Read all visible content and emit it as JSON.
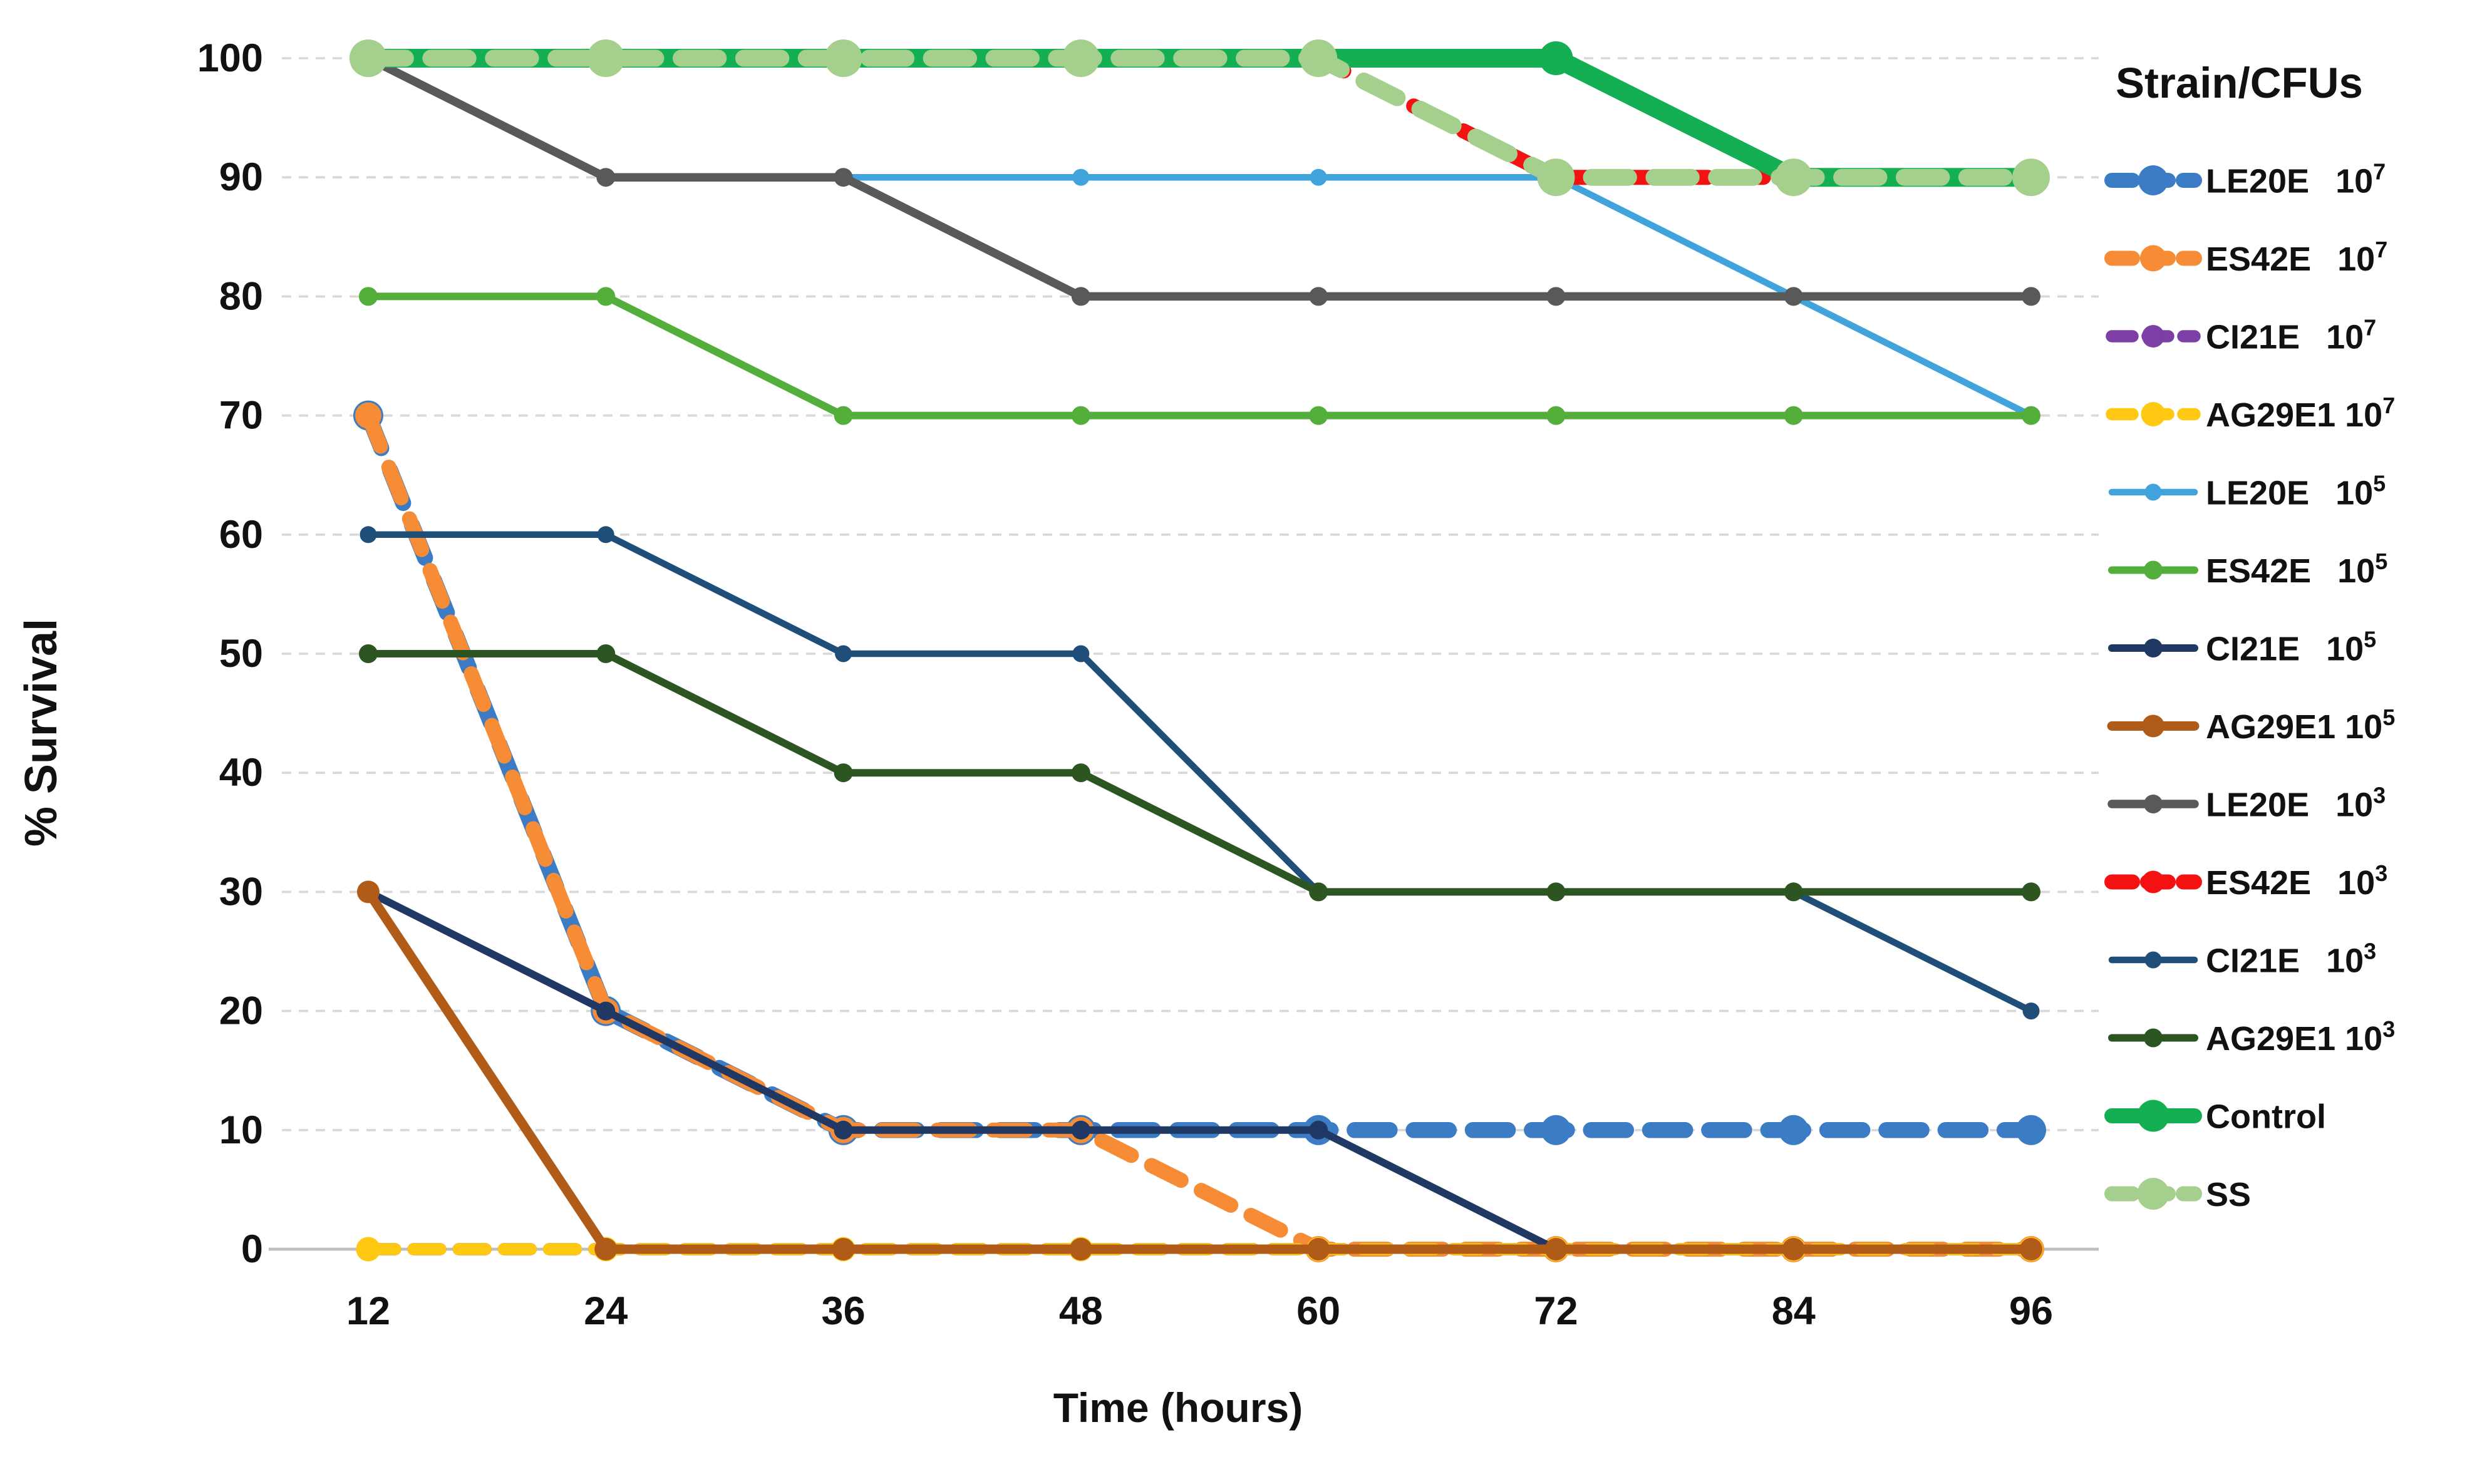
{
  "legend": {
    "title": "Strain/CFUs",
    "position": "right"
  },
  "axes": {
    "x_label": "Time (hours)",
    "y_label": "% Survival",
    "x_ticks": [
      12,
      24,
      36,
      48,
      60,
      72,
      84,
      96
    ],
    "y_ticks": [
      0,
      10,
      20,
      30,
      40,
      50,
      60,
      70,
      80,
      90,
      100
    ]
  },
  "chart_data": {
    "type": "line",
    "x": [
      12,
      24,
      36,
      48,
      60,
      72,
      84,
      96
    ],
    "xlabel": "Time (hours)",
    "ylabel": "% Survival",
    "ylim": [
      0,
      100
    ],
    "xlim": [
      12,
      96
    ],
    "grid": true,
    "gridline_color": "#d8d8d8",
    "axis_line_color": "#bfbfbf",
    "legend_position": "right",
    "legend_title": "Strain/CFUs",
    "series": [
      {
        "name": "LE20E 10^7",
        "strain": "LE20E",
        "cfu_exponent": "7",
        "color": "#3B7CC4",
        "style": "dashed",
        "width": 8.5,
        "marker_r": 8,
        "values": [
          70,
          20,
          10,
          10,
          10,
          10,
          10,
          10
        ]
      },
      {
        "name": "ES42E 10^7",
        "strain": "ES42E",
        "cfu_exponent": "7",
        "color": "#F68C35",
        "style": "dashed",
        "width": 8,
        "marker_r": 7,
        "values": [
          70,
          20,
          10,
          10,
          0,
          0,
          0,
          0
        ]
      },
      {
        "name": "CI21E 10^7",
        "strain": "CI21E",
        "cfu_exponent": "7",
        "color": "#7C3FA5",
        "style": "dashed",
        "width": 6.5,
        "marker_r": 6,
        "values": [
          0,
          0,
          0,
          0,
          0,
          0,
          0,
          0
        ]
      },
      {
        "name": "AG29E1 10^7",
        "strain": "AG29E1",
        "cfu_exponent": "7",
        "color": "#FFC913",
        "style": "dashed",
        "width": 6.5,
        "marker_r": 6.5,
        "values": [
          0,
          0,
          0,
          0,
          0,
          0,
          0,
          0
        ]
      },
      {
        "name": "LE20E 10^5",
        "strain": "LE20E",
        "cfu_exponent": "5",
        "color": "#41A3DC",
        "style": "solid",
        "width": 3.5,
        "marker_r": 4.5,
        "values": [
          100,
          90,
          90,
          90,
          90,
          90,
          80,
          70
        ]
      },
      {
        "name": "ES42E 10^5",
        "strain": "ES42E",
        "cfu_exponent": "5",
        "color": "#53AE3C",
        "style": "solid",
        "width": 4,
        "marker_r": 5,
        "values": [
          80,
          80,
          70,
          70,
          70,
          70,
          70,
          70
        ]
      },
      {
        "name": "CI21E 10^5",
        "strain": "CI21E",
        "cfu_exponent": "5",
        "color": "#1F3864",
        "style": "solid",
        "width": 4,
        "marker_r": 5,
        "values": [
          30,
          20,
          10,
          10,
          10,
          0,
          0,
          0
        ]
      },
      {
        "name": "AG29E1 10^5",
        "strain": "AG29E1",
        "cfu_exponent": "5",
        "color": "#B05B17",
        "style": "solid",
        "width": 5,
        "marker_r": 6,
        "values": [
          30,
          0,
          0,
          0,
          0,
          0,
          0,
          0
        ]
      },
      {
        "name": "LE20E 10^3",
        "strain": "LE20E",
        "cfu_exponent": "3",
        "color": "#595959",
        "style": "solid",
        "width": 4.5,
        "marker_r": 5,
        "values": [
          100,
          90,
          90,
          80,
          80,
          80,
          80,
          80
        ]
      },
      {
        "name": "ES42E 10^3",
        "strain": "ES42E",
        "cfu_exponent": "3",
        "color": "#F31111",
        "style": "dashed",
        "width": 8,
        "marker_r": 6,
        "values": [
          100,
          100,
          100,
          100,
          100,
          90,
          90,
          90
        ]
      },
      {
        "name": "CI21E 10^3",
        "strain": "CI21E",
        "cfu_exponent": "3",
        "color": "#1F4E79",
        "style": "solid",
        "width": 3.5,
        "marker_r": 4.5,
        "values": [
          60,
          60,
          50,
          50,
          30,
          30,
          30,
          20
        ]
      },
      {
        "name": "AG29E1 10^3",
        "strain": "AG29E1",
        "cfu_exponent": "3",
        "color": "#2D5522",
        "style": "solid",
        "width": 4,
        "marker_r": 5,
        "values": [
          50,
          50,
          40,
          40,
          30,
          30,
          30,
          30
        ]
      },
      {
        "name": "Control",
        "strain": "Control",
        "cfu_exponent": "",
        "color": "#13AF52",
        "style": "solid",
        "width": 10,
        "marker_r": 9,
        "values": [
          100,
          100,
          100,
          100,
          100,
          100,
          90,
          90
        ]
      },
      {
        "name": "SS",
        "strain": "SS",
        "cfu_exponent": "",
        "color": "#A5CF8C",
        "style": "dashed",
        "width": 9,
        "marker_r": 10,
        "values": [
          100,
          100,
          100,
          100,
          100,
          90,
          90,
          90
        ]
      }
    ]
  }
}
